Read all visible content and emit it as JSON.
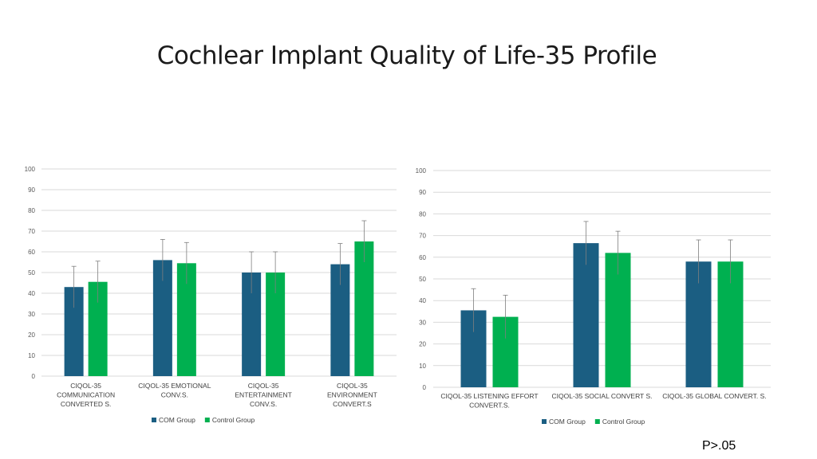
{
  "slide": {
    "title": "Cochlear Implant Quality of Life-35  Profile",
    "footnote": "P>.05"
  },
  "colors": {
    "com": "#1b5e82",
    "control": "#00b050",
    "grid": "#d9d9d9",
    "error_bar": "#7f7f7f"
  },
  "chart_data": [
    {
      "type": "bar",
      "title": "",
      "xlabel": "",
      "ylabel": "",
      "ylim": [
        0,
        100
      ],
      "yticks": [
        0,
        10,
        20,
        30,
        40,
        50,
        60,
        70,
        80,
        90,
        100
      ],
      "grid": true,
      "legend": "bottom",
      "categories": [
        [
          "CIQOL-35",
          "COMMUNICATION",
          "CONVERTED S."
        ],
        [
          "CIQOL-35 EMOTIONAL",
          "CONV.S."
        ],
        [
          "CIQOL-35",
          "ENTERTAINMENT",
          "CONV.S."
        ],
        [
          "CIQOL-35",
          "ENVIRONMENT",
          "CONVERT.S"
        ]
      ],
      "series": [
        {
          "name": "COM Group",
          "values": [
            43,
            56,
            50,
            54
          ],
          "errors": [
            10,
            10,
            10,
            10
          ]
        },
        {
          "name": "Control Group",
          "values": [
            45.5,
            54.5,
            50,
            65
          ],
          "errors": [
            10,
            10,
            10,
            10
          ]
        }
      ]
    },
    {
      "type": "bar",
      "title": "",
      "xlabel": "",
      "ylabel": "",
      "ylim": [
        0,
        100
      ],
      "yticks": [
        0,
        10,
        20,
        30,
        40,
        50,
        60,
        70,
        80,
        90,
        100
      ],
      "grid": true,
      "legend": "bottom",
      "categories": [
        [
          "CIQOL-35 LISTENING EFFORT",
          "CONVERT.S."
        ],
        [
          "CIQOL-35 SOCIAL CONVERT S."
        ],
        [
          "CIQOL-35 GLOBAL CONVERT. S."
        ]
      ],
      "series": [
        {
          "name": "COM Group",
          "values": [
            35.5,
            66.5,
            58
          ],
          "errors": [
            10,
            10,
            10
          ]
        },
        {
          "name": "Control Group",
          "values": [
            32.5,
            62,
            58
          ],
          "errors": [
            10,
            10,
            10
          ]
        }
      ]
    }
  ]
}
